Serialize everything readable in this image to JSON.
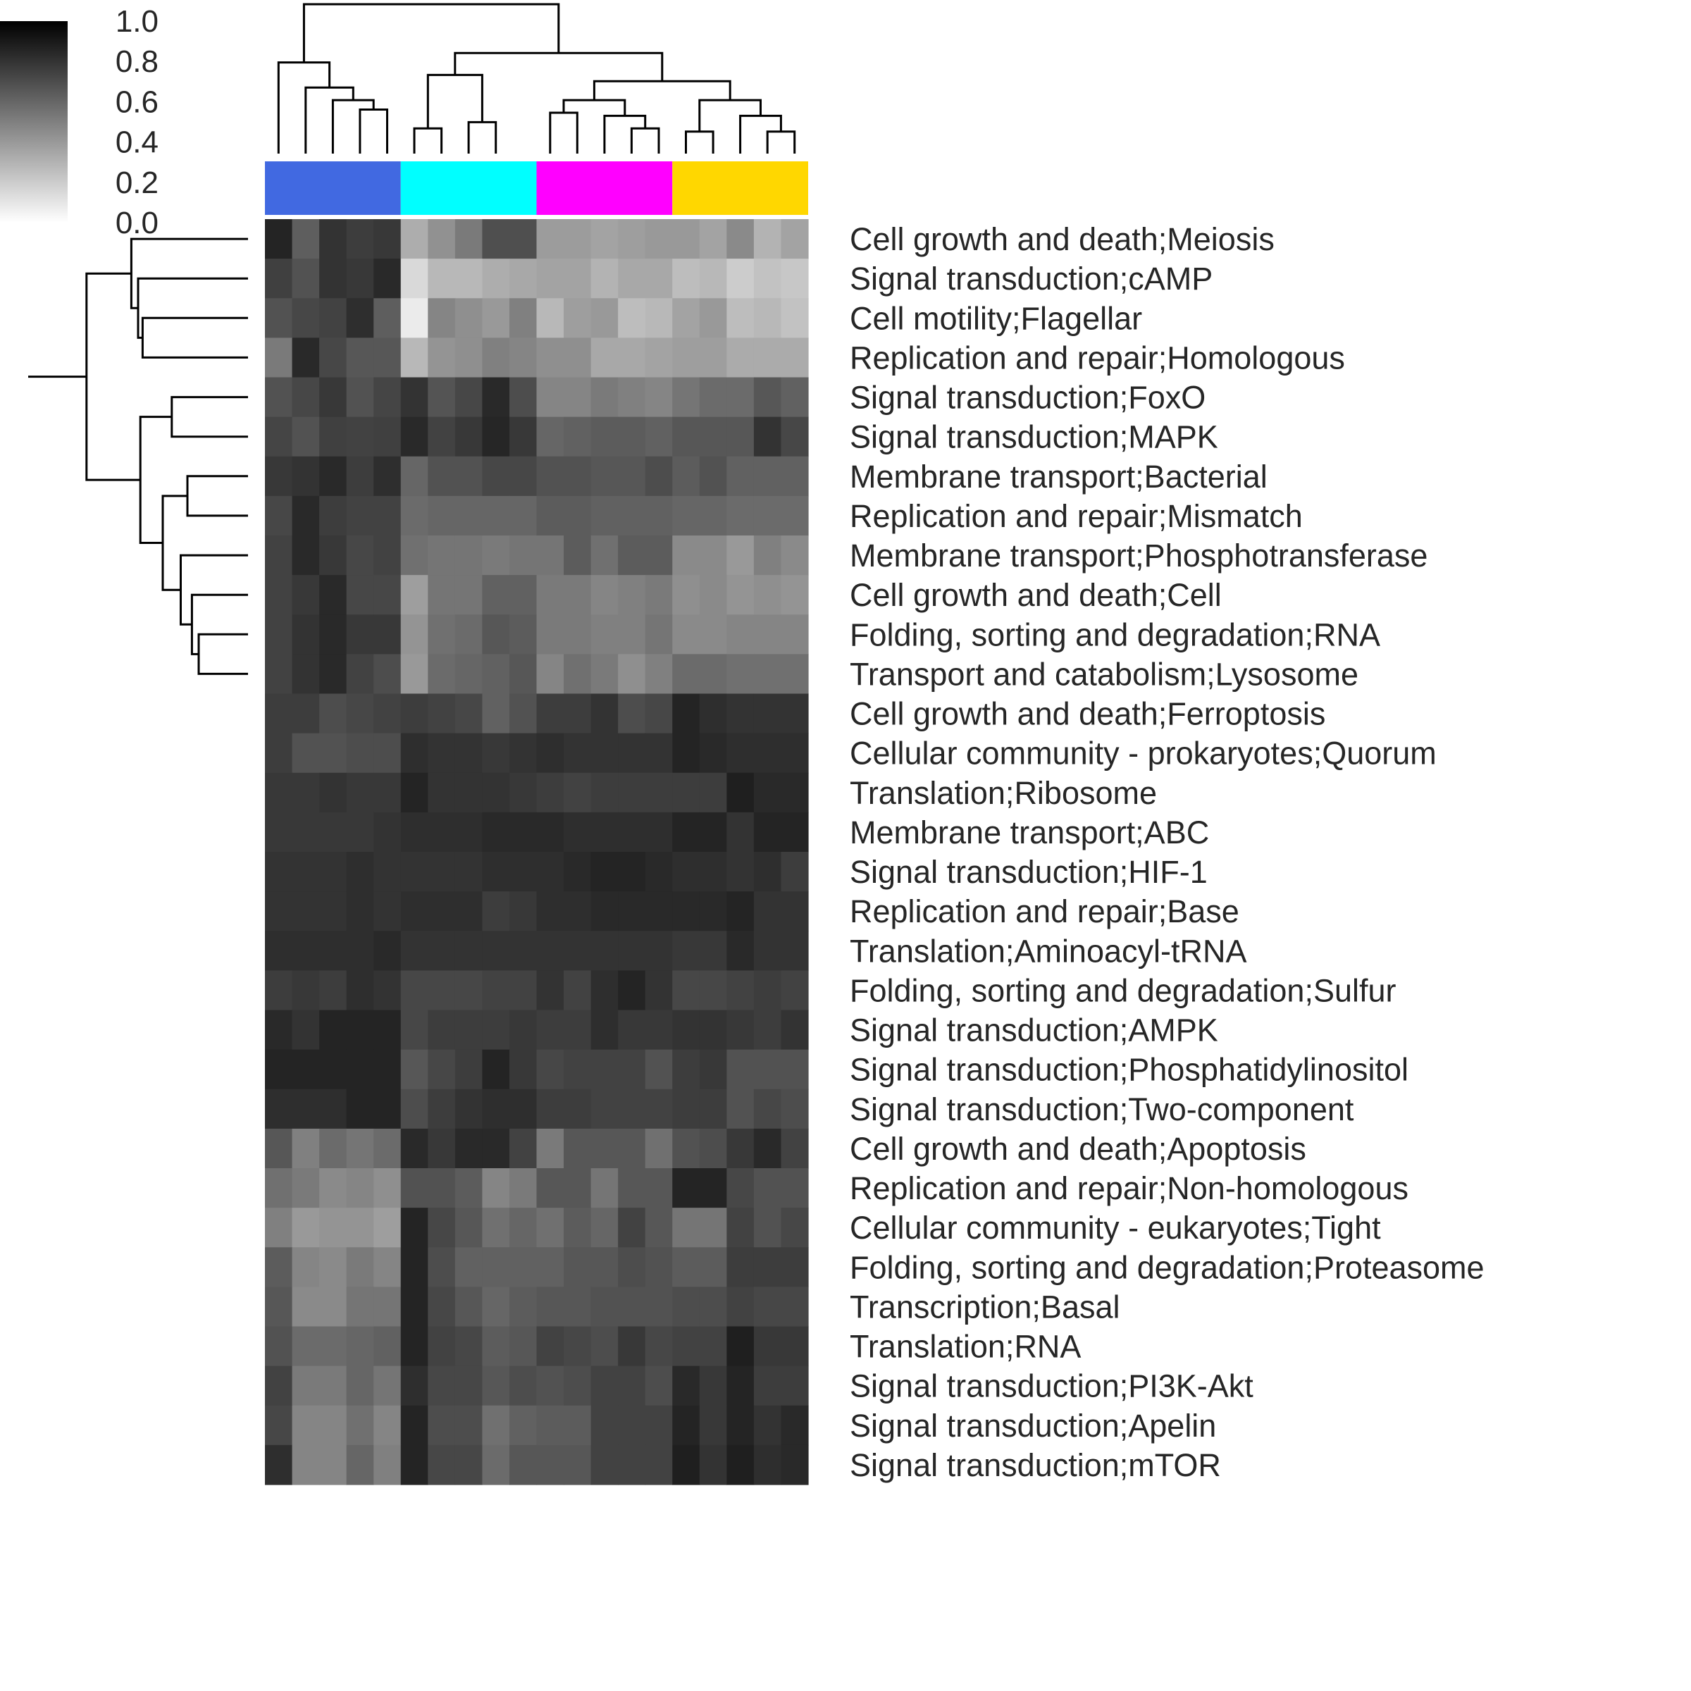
{
  "chart_data": {
    "type": "heatmap",
    "title": "",
    "xlabel": "",
    "ylabel": "",
    "color_scale": {
      "colormap": "gray_r",
      "min": 0.0,
      "max": 1.0,
      "ticks": [
        "1.0",
        "0.8",
        "0.6",
        "0.4",
        "0.2",
        "0.0"
      ]
    },
    "column_groups": [
      {
        "color": "#4169E1",
        "count": 5
      },
      {
        "color": "#00FFFF",
        "count": 5
      },
      {
        "color": "#FF00FF",
        "count": 5
      },
      {
        "color": "#FFD700",
        "count": 5
      }
    ],
    "rows": [
      "Cell growth and death;Meiosis",
      "Signal transduction;cAMP",
      "Cell motility;Flagellar",
      "Replication and repair;Homologous",
      "Signal transduction;FoxO",
      "Signal transduction;MAPK",
      "Membrane transport;Bacterial",
      "Replication and repair;Mismatch",
      "Membrane transport;Phosphotransferase",
      "Cell growth and death;Cell",
      "Folding, sorting and degradation;RNA",
      "Transport and catabolism;Lysosome",
      "Cell growth and death;Ferroptosis",
      "Cellular community - prokaryotes;Quorum",
      "Translation;Ribosome",
      "Membrane transport;ABC",
      "Signal transduction;HIF-1",
      "Replication and repair;Base",
      "Translation;Aminoacyl-tRNA",
      "Folding, sorting and degradation;Sulfur",
      "Signal transduction;AMPK",
      "Signal transduction;Phosphatidylinositol",
      "Signal transduction;Two-component",
      "Cell growth and death;Apoptosis",
      "Replication and repair;Non-homologous",
      "Cellular community - eukaryotes;Tight",
      "Folding, sorting and degradation;Proteasome",
      "Transcription;Basal",
      "Translation;RNA",
      "Signal transduction;PI3K-Akt",
      "Signal transduction;Apelin",
      "Signal transduction;mTOR"
    ],
    "values": [
      [
        0.86,
        0.63,
        0.8,
        0.76,
        0.78,
        0.32,
        0.43,
        0.52,
        0.69,
        0.69,
        0.39,
        0.39,
        0.36,
        0.38,
        0.4,
        0.4,
        0.36,
        0.46,
        0.3,
        0.36
      ],
      [
        0.75,
        0.68,
        0.8,
        0.78,
        0.84,
        0.15,
        0.28,
        0.28,
        0.32,
        0.34,
        0.36,
        0.36,
        0.3,
        0.34,
        0.34,
        0.26,
        0.28,
        0.2,
        0.24,
        0.22
      ],
      [
        0.68,
        0.72,
        0.74,
        0.82,
        0.63,
        0.08,
        0.48,
        0.44,
        0.4,
        0.5,
        0.28,
        0.38,
        0.4,
        0.26,
        0.28,
        0.36,
        0.4,
        0.26,
        0.28,
        0.24
      ],
      [
        0.52,
        0.84,
        0.72,
        0.66,
        0.66,
        0.28,
        0.42,
        0.44,
        0.5,
        0.48,
        0.44,
        0.44,
        0.34,
        0.34,
        0.36,
        0.38,
        0.38,
        0.33,
        0.33,
        0.33
      ],
      [
        0.68,
        0.72,
        0.78,
        0.68,
        0.73,
        0.8,
        0.67,
        0.72,
        0.84,
        0.7,
        0.48,
        0.48,
        0.52,
        0.5,
        0.48,
        0.54,
        0.58,
        0.58,
        0.66,
        0.62
      ],
      [
        0.73,
        0.68,
        0.75,
        0.74,
        0.75,
        0.84,
        0.74,
        0.78,
        0.85,
        0.78,
        0.6,
        0.62,
        0.64,
        0.64,
        0.62,
        0.66,
        0.66,
        0.66,
        0.8,
        0.72
      ],
      [
        0.78,
        0.8,
        0.84,
        0.76,
        0.82,
        0.6,
        0.68,
        0.68,
        0.72,
        0.72,
        0.68,
        0.68,
        0.66,
        0.66,
        0.7,
        0.64,
        0.68,
        0.62,
        0.62,
        0.62
      ],
      [
        0.72,
        0.84,
        0.76,
        0.74,
        0.74,
        0.58,
        0.6,
        0.6,
        0.6,
        0.6,
        0.64,
        0.64,
        0.62,
        0.62,
        0.62,
        0.6,
        0.6,
        0.58,
        0.58,
        0.58
      ],
      [
        0.74,
        0.84,
        0.78,
        0.72,
        0.74,
        0.56,
        0.54,
        0.54,
        0.52,
        0.54,
        0.54,
        0.64,
        0.56,
        0.64,
        0.64,
        0.46,
        0.46,
        0.4,
        0.5,
        0.46
      ],
      [
        0.74,
        0.78,
        0.84,
        0.72,
        0.72,
        0.38,
        0.54,
        0.54,
        0.62,
        0.62,
        0.52,
        0.52,
        0.48,
        0.5,
        0.52,
        0.44,
        0.46,
        0.42,
        0.44,
        0.42
      ],
      [
        0.74,
        0.8,
        0.84,
        0.78,
        0.78,
        0.42,
        0.56,
        0.58,
        0.66,
        0.64,
        0.52,
        0.52,
        0.5,
        0.5,
        0.54,
        0.46,
        0.46,
        0.48,
        0.48,
        0.48
      ],
      [
        0.74,
        0.8,
        0.84,
        0.74,
        0.7,
        0.4,
        0.58,
        0.6,
        0.62,
        0.66,
        0.48,
        0.56,
        0.52,
        0.44,
        0.5,
        0.58,
        0.58,
        0.56,
        0.56,
        0.56
      ],
      [
        0.76,
        0.76,
        0.7,
        0.72,
        0.74,
        0.76,
        0.74,
        0.72,
        0.62,
        0.68,
        0.76,
        0.76,
        0.8,
        0.7,
        0.72,
        0.86,
        0.82,
        0.8,
        0.8,
        0.8
      ],
      [
        0.76,
        0.68,
        0.68,
        0.7,
        0.7,
        0.82,
        0.8,
        0.8,
        0.78,
        0.8,
        0.82,
        0.8,
        0.8,
        0.8,
        0.8,
        0.86,
        0.84,
        0.82,
        0.82,
        0.82
      ],
      [
        0.78,
        0.78,
        0.8,
        0.78,
        0.78,
        0.86,
        0.8,
        0.8,
        0.8,
        0.78,
        0.76,
        0.74,
        0.76,
        0.76,
        0.76,
        0.76,
        0.76,
        0.88,
        0.84,
        0.84
      ],
      [
        0.78,
        0.78,
        0.78,
        0.78,
        0.8,
        0.82,
        0.82,
        0.82,
        0.84,
        0.84,
        0.84,
        0.82,
        0.82,
        0.82,
        0.82,
        0.86,
        0.86,
        0.8,
        0.86,
        0.86
      ],
      [
        0.8,
        0.8,
        0.8,
        0.82,
        0.8,
        0.8,
        0.8,
        0.8,
        0.82,
        0.82,
        0.82,
        0.84,
        0.86,
        0.86,
        0.84,
        0.82,
        0.82,
        0.8,
        0.82,
        0.76
      ],
      [
        0.8,
        0.8,
        0.8,
        0.82,
        0.8,
        0.82,
        0.82,
        0.82,
        0.76,
        0.78,
        0.82,
        0.82,
        0.84,
        0.84,
        0.84,
        0.84,
        0.84,
        0.86,
        0.8,
        0.8
      ],
      [
        0.82,
        0.82,
        0.82,
        0.82,
        0.84,
        0.8,
        0.8,
        0.8,
        0.8,
        0.8,
        0.8,
        0.8,
        0.8,
        0.8,
        0.8,
        0.78,
        0.78,
        0.84,
        0.8,
        0.8
      ],
      [
        0.76,
        0.78,
        0.76,
        0.82,
        0.8,
        0.72,
        0.72,
        0.72,
        0.74,
        0.74,
        0.8,
        0.74,
        0.82,
        0.86,
        0.8,
        0.72,
        0.72,
        0.74,
        0.76,
        0.74
      ],
      [
        0.84,
        0.8,
        0.86,
        0.86,
        0.86,
        0.72,
        0.76,
        0.76,
        0.76,
        0.78,
        0.76,
        0.76,
        0.82,
        0.78,
        0.78,
        0.8,
        0.8,
        0.78,
        0.76,
        0.8
      ],
      [
        0.86,
        0.86,
        0.86,
        0.86,
        0.86,
        0.66,
        0.72,
        0.76,
        0.86,
        0.78,
        0.72,
        0.74,
        0.74,
        0.74,
        0.68,
        0.76,
        0.78,
        0.68,
        0.68,
        0.68
      ],
      [
        0.82,
        0.82,
        0.82,
        0.86,
        0.86,
        0.7,
        0.76,
        0.8,
        0.82,
        0.82,
        0.76,
        0.76,
        0.74,
        0.74,
        0.74,
        0.76,
        0.76,
        0.68,
        0.72,
        0.7
      ],
      [
        0.66,
        0.5,
        0.58,
        0.54,
        0.58,
        0.84,
        0.78,
        0.84,
        0.84,
        0.74,
        0.52,
        0.66,
        0.66,
        0.66,
        0.56,
        0.68,
        0.7,
        0.78,
        0.84,
        0.74
      ],
      [
        0.56,
        0.52,
        0.46,
        0.48,
        0.44,
        0.68,
        0.68,
        0.64,
        0.48,
        0.52,
        0.66,
        0.66,
        0.54,
        0.66,
        0.66,
        0.86,
        0.86,
        0.72,
        0.68,
        0.68
      ],
      [
        0.5,
        0.4,
        0.42,
        0.42,
        0.38,
        0.86,
        0.72,
        0.66,
        0.56,
        0.6,
        0.56,
        0.64,
        0.6,
        0.74,
        0.66,
        0.54,
        0.54,
        0.74,
        0.68,
        0.72
      ],
      [
        0.64,
        0.48,
        0.46,
        0.52,
        0.48,
        0.86,
        0.7,
        0.62,
        0.62,
        0.62,
        0.62,
        0.66,
        0.66,
        0.7,
        0.68,
        0.64,
        0.64,
        0.76,
        0.76,
        0.76
      ],
      [
        0.66,
        0.46,
        0.46,
        0.54,
        0.54,
        0.86,
        0.72,
        0.66,
        0.6,
        0.64,
        0.66,
        0.66,
        0.68,
        0.68,
        0.68,
        0.7,
        0.7,
        0.74,
        0.72,
        0.72
      ],
      [
        0.68,
        0.58,
        0.58,
        0.6,
        0.62,
        0.86,
        0.74,
        0.72,
        0.64,
        0.66,
        0.74,
        0.72,
        0.7,
        0.78,
        0.72,
        0.74,
        0.74,
        0.88,
        0.78,
        0.78
      ],
      [
        0.74,
        0.52,
        0.52,
        0.6,
        0.54,
        0.82,
        0.72,
        0.72,
        0.66,
        0.7,
        0.68,
        0.7,
        0.74,
        0.74,
        0.7,
        0.84,
        0.78,
        0.86,
        0.76,
        0.76
      ],
      [
        0.72,
        0.48,
        0.48,
        0.56,
        0.48,
        0.86,
        0.7,
        0.7,
        0.56,
        0.62,
        0.64,
        0.64,
        0.74,
        0.74,
        0.74,
        0.86,
        0.78,
        0.86,
        0.8,
        0.84
      ],
      [
        0.82,
        0.48,
        0.48,
        0.6,
        0.5,
        0.86,
        0.72,
        0.72,
        0.58,
        0.66,
        0.66,
        0.66,
        0.74,
        0.74,
        0.74,
        0.88,
        0.8,
        0.88,
        0.82,
        0.84
      ]
    ],
    "column_dendrogram": {
      "leaf_order": [
        0,
        1,
        2,
        3,
        4,
        5,
        6,
        7,
        8,
        9,
        10,
        11,
        12,
        13,
        14,
        15,
        16,
        17,
        18,
        19
      ],
      "links": [
        [
          3,
          4,
          0.28
        ],
        [
          2,
          20,
          0.34
        ],
        [
          1,
          21,
          0.42
        ],
        [
          0,
          22,
          0.58
        ],
        [
          5,
          6,
          0.16
        ],
        [
          7,
          8,
          0.2
        ],
        [
          10,
          11,
          0.26
        ],
        [
          13,
          14,
          0.16
        ],
        [
          12,
          27,
          0.24
        ],
        [
          26,
          28,
          0.34
        ],
        [
          15,
          16,
          0.14
        ],
        [
          18,
          19,
          0.14
        ],
        [
          17,
          31,
          0.24
        ],
        [
          30,
          32,
          0.34
        ],
        [
          29,
          33,
          0.46
        ],
        [
          24,
          25,
          0.5
        ],
        [
          34,
          35,
          0.64
        ],
        [
          36,
          23,
          0.95
        ]
      ]
    },
    "row_dendrogram": {
      "leaf_order": [
        0,
        1,
        2,
        3,
        4,
        5,
        6,
        7,
        8,
        9,
        10,
        11,
        12,
        13,
        14,
        15,
        16,
        17,
        18,
        19,
        20,
        21,
        22,
        23,
        24,
        25,
        26,
        27,
        28,
        29,
        30,
        31
      ],
      "links": [
        [
          2,
          3,
          0.47
        ],
        [
          1,
          32,
          0.49
        ],
        [
          0,
          33,
          0.52
        ],
        [
          4,
          5,
          0.34
        ],
        [
          6,
          7,
          0.27
        ],
        [
          10,
          11,
          0.22
        ],
        [
          9,
          37,
          0.25
        ],
        [
          8,
          38,
          0.3
        ],
        [
          36,
          39,
          0.38
        ],
        [
          35,
          40,
          0.48
        ],
        [
          34,
          41,
          0.72
        ],
        [
          42,
          43,
          0.98
        ]
      ]
    }
  }
}
